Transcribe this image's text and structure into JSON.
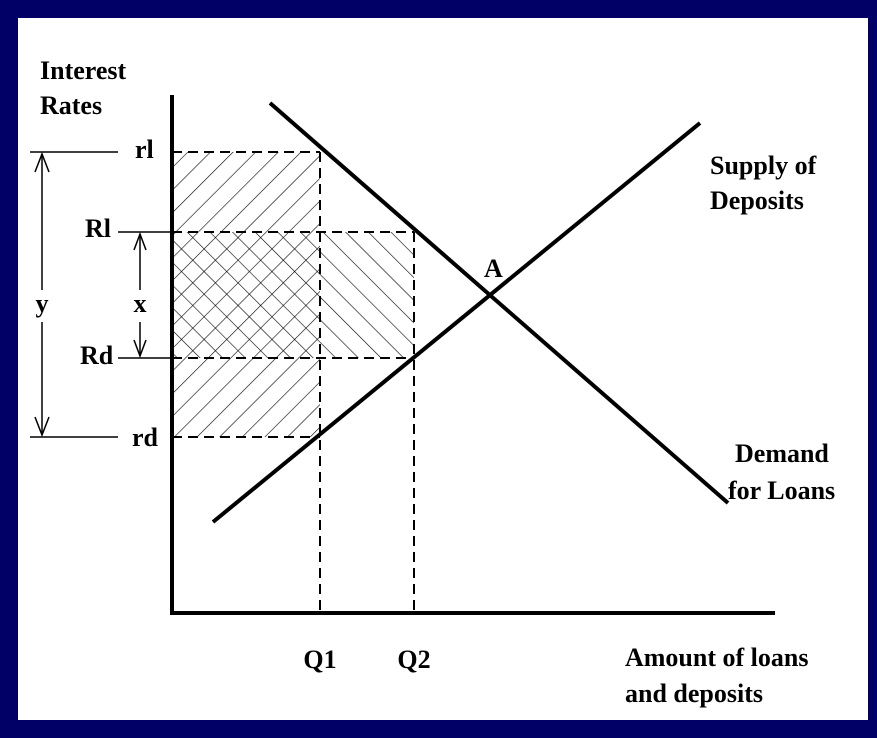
{
  "axis": {
    "y_title": [
      "Interest",
      "Rates"
    ],
    "x_title": [
      "Amount of loans",
      "and deposits"
    ]
  },
  "levels": {
    "rl": "rl",
    "Rl": "Rl",
    "Rd": "Rd",
    "rd": "rd"
  },
  "quantities": [
    "Q1",
    "Q2"
  ],
  "spreads": {
    "y": "y",
    "x": "x"
  },
  "curves": {
    "supply": [
      "Supply of",
      "Deposits"
    ],
    "demand": [
      "Demand",
      "for Loans"
    ],
    "equilibrium": "A"
  }
}
